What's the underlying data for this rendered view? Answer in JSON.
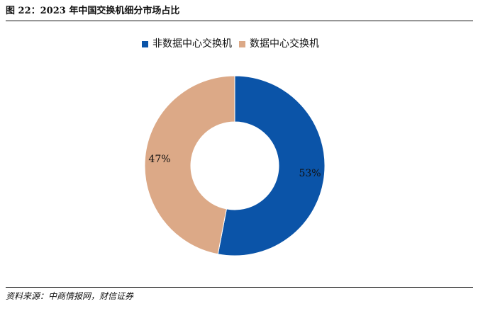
{
  "header": {
    "title": "图 22：2023 年中国交换机细分市场占比"
  },
  "footer": {
    "source": "资料来源：中商情报网，财信证券"
  },
  "chart_data": {
    "type": "pie",
    "variant": "donut",
    "title": "",
    "legend_position": "top",
    "slices": [
      {
        "label": "非数据中心交换机",
        "value": 53,
        "display": "53%",
        "color": "#0b54a8"
      },
      {
        "label": "数据中心交换机",
        "value": 47,
        "display": "47%",
        "color": "#dca987"
      }
    ]
  }
}
